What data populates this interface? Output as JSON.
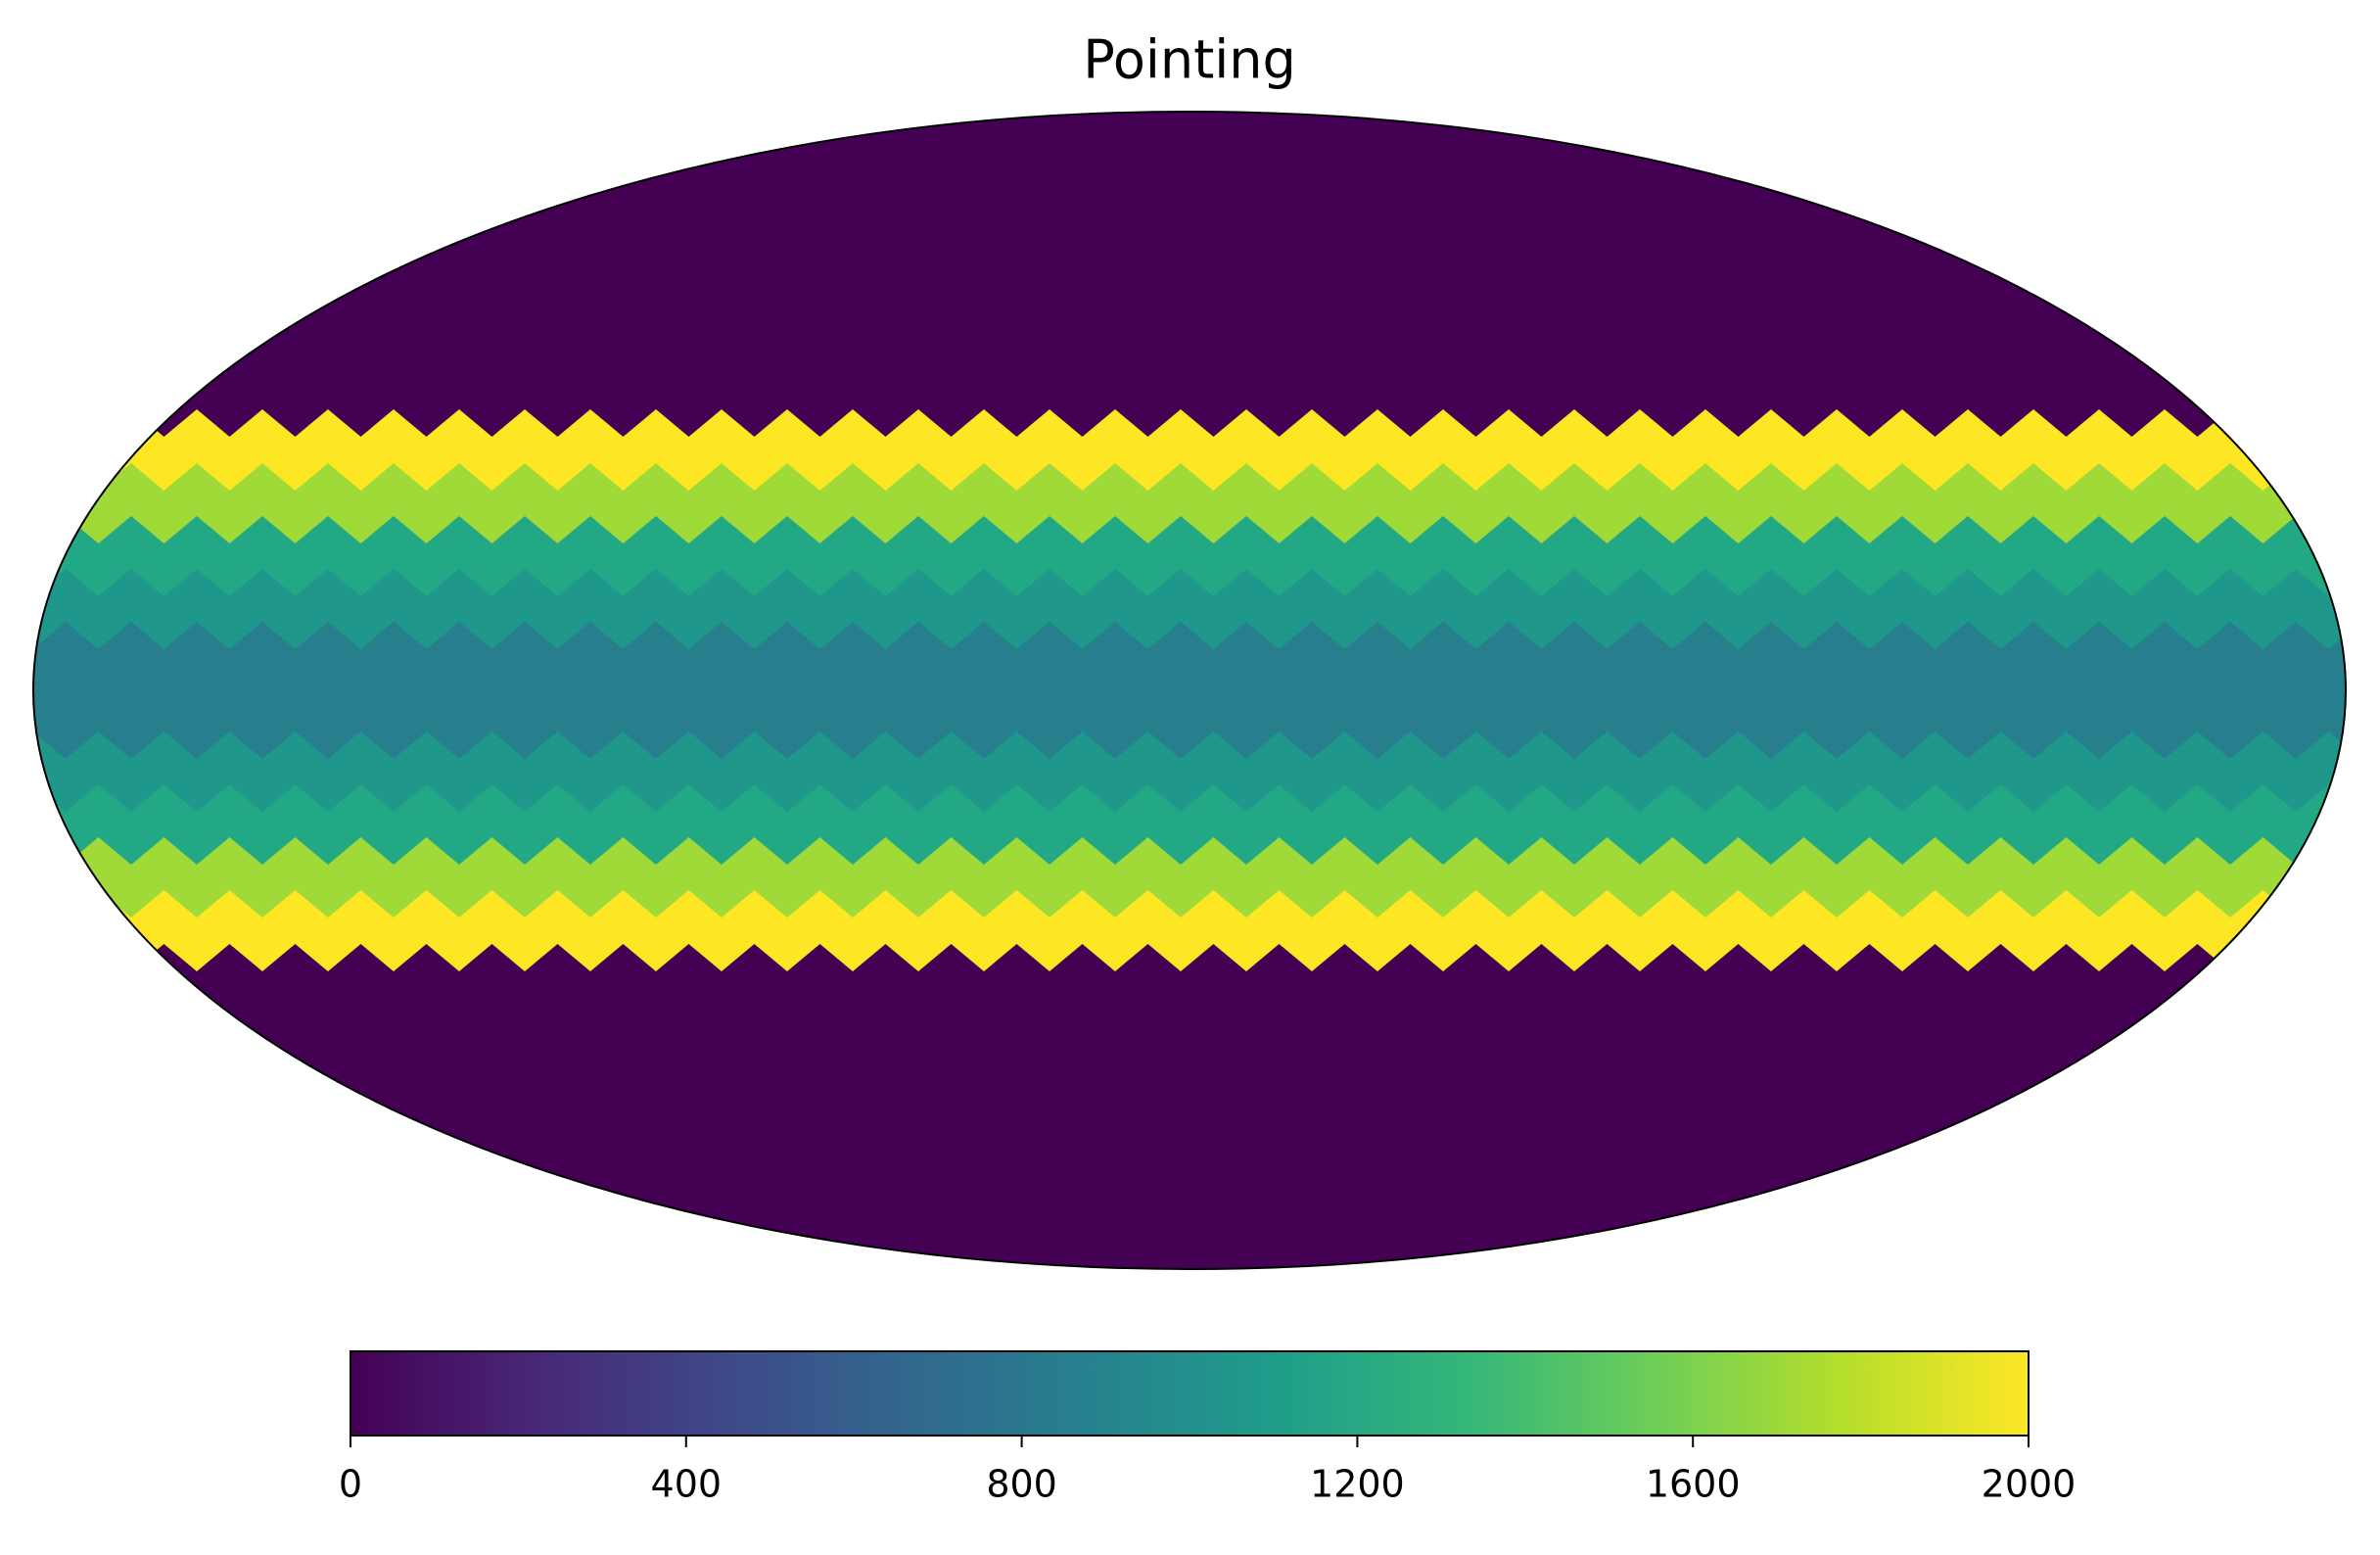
{
  "chart_data": {
    "type": "map",
    "title": "Pointing",
    "projection": "mollweide",
    "colorbar": {
      "lim": [
        0,
        2000
      ],
      "ticks": [
        0,
        400,
        800,
        1200,
        1600,
        2000
      ],
      "colormap": [
        "#440154",
        "#482878",
        "#3e4989",
        "#31688e",
        "#26828e",
        "#1f9e89",
        "#35b779",
        "#6ece58",
        "#b5de2b",
        "#fde725"
      ]
    }
  }
}
